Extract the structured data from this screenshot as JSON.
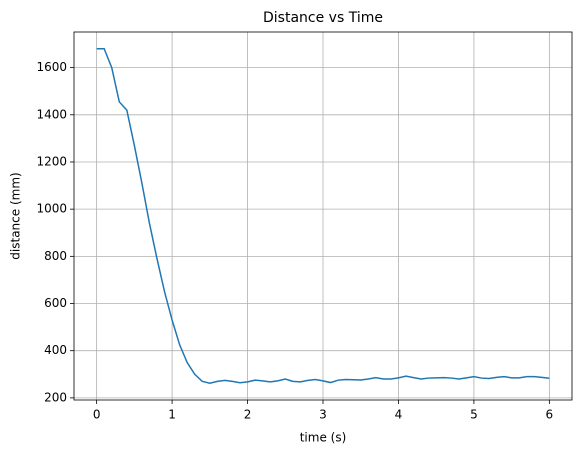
{
  "chart_data": {
    "type": "line",
    "title": "Distance vs Time",
    "x_label": "time (s)",
    "y_label": "distance (mm)",
    "x": [
      0,
      0.1,
      0.2,
      0.3,
      0.4,
      0.5,
      0.6,
      0.7,
      0.8,
      0.9,
      1.0,
      1.1,
      1.2,
      1.3,
      1.4,
      1.5,
      1.6,
      1.7,
      1.8,
      1.9,
      2.0,
      2.1,
      2.2,
      2.3,
      2.4,
      2.5,
      2.6,
      2.7,
      2.8,
      2.9,
      3.0,
      3.1,
      3.2,
      3.3,
      3.4,
      3.5,
      3.6,
      3.7,
      3.8,
      3.9,
      4.0,
      4.1,
      4.2,
      4.3,
      4.4,
      4.5,
      4.6,
      4.7,
      4.8,
      4.9,
      5.0,
      5.1,
      5.2,
      5.3,
      5.4,
      5.5,
      5.6,
      5.7,
      5.8,
      5.9,
      6.0
    ],
    "series": [
      {
        "color": "#1f77b4",
        "values": [
          1680,
          1680,
          1600,
          1455,
          1420,
          1270,
          1110,
          940,
          790,
          650,
          530,
          425,
          350,
          300,
          270,
          262,
          270,
          274,
          270,
          264,
          268,
          275,
          272,
          268,
          272,
          280,
          270,
          268,
          274,
          278,
          272,
          265,
          275,
          278,
          277,
          276,
          280,
          286,
          280,
          280,
          285,
          292,
          286,
          280,
          284,
          285,
          286,
          284,
          280,
          285,
          290,
          284,
          282,
          287,
          290,
          285,
          285,
          290,
          290,
          287,
          283
        ]
      }
    ],
    "xlim": [
      -0.3,
      6.3
    ],
    "xticks": [
      0,
      1,
      2,
      3,
      4,
      5,
      6
    ],
    "ylim": [
      191,
      1751
    ],
    "yticks": [
      200,
      400,
      600,
      800,
      1000,
      1200,
      1400,
      1600
    ],
    "grid": true
  }
}
